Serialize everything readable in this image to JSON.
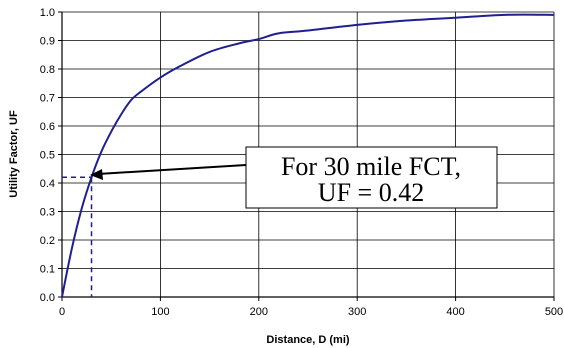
{
  "chart_data": {
    "type": "line",
    "title": "",
    "xlabel": "Distance, D (mi)",
    "ylabel": "Utility Factor, UF",
    "xlim": [
      0,
      500
    ],
    "ylim": [
      0,
      1.0
    ],
    "x_ticks": [
      0,
      100,
      200,
      300,
      400,
      500
    ],
    "y_ticks": [
      "0.0",
      "0.1",
      "0.2",
      "0.3",
      "0.4",
      "0.5",
      "0.6",
      "0.7",
      "0.8",
      "0.9",
      "1.0"
    ],
    "grid": true,
    "series": [
      {
        "color": "#1f1f8f",
        "x": [
          0,
          10,
          20,
          30,
          40,
          50,
          60,
          70,
          80,
          100,
          120,
          150,
          180,
          200,
          220,
          250,
          300,
          350,
          400,
          450,
          500
        ],
        "y": [
          0,
          0.17,
          0.31,
          0.42,
          0.51,
          0.58,
          0.64,
          0.69,
          0.72,
          0.77,
          0.81,
          0.86,
          0.89,
          0.905,
          0.925,
          0.935,
          0.955,
          0.97,
          0.98,
          0.99,
          0.99
        ]
      }
    ],
    "marker": {
      "x": 30,
      "y": 0.42
    },
    "annotation": {
      "line1": "For 30 mile FCT,",
      "line2": "UF = 0.42"
    }
  }
}
